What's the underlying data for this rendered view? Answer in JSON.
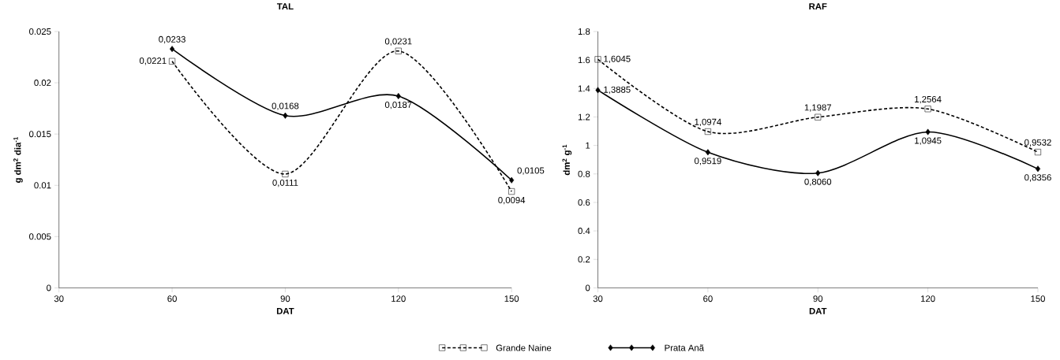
{
  "chart_data": [
    {
      "type": "line",
      "title": "TAL",
      "xlabel": "DAT",
      "ylabel": "g dm$^{2}$ dia$^{-1}$",
      "x": [
        60,
        90,
        120,
        150
      ],
      "series": [
        {
          "name": "Grande Naine",
          "color": "#000000",
          "marker": "square",
          "line_style": "dashed",
          "values": [
            0.0221,
            0.0111,
            0.0231,
            0.0094
          ],
          "value_labels": [
            "0,0221",
            "0,0111",
            "0,0231",
            "0,0094"
          ]
        },
        {
          "name": "Prata Anã",
          "color": "#000000",
          "marker": "diamond",
          "line_style": "solid",
          "values": [
            0.0233,
            0.0168,
            0.0187,
            0.0105
          ],
          "value_labels": [
            "0,0233",
            "0,0168",
            "0,0187",
            "0,0105"
          ]
        }
      ],
      "xlim": [
        30,
        150
      ],
      "xticks": [
        30,
        60,
        90,
        120,
        150
      ],
      "ylim": [
        0,
        0.025
      ],
      "yticks": [
        0,
        0.005,
        0.01,
        0.015,
        0.02,
        0.025
      ],
      "grid": false,
      "legend": "bottom"
    },
    {
      "type": "line",
      "title": "RAF",
      "xlabel": "DAT",
      "ylabel": "dm$^{2}$ g$^{-1}$",
      "x": [
        30,
        60,
        90,
        120,
        150
      ],
      "series": [
        {
          "color": "#000000",
          "marker": "square",
          "line_style": "dashed",
          "values": [
            1.6045,
            1.0974,
            1.1987,
            1.2564,
            0.9532
          ],
          "value_labels": [
            "1,6045",
            "1,0974",
            "1,1987",
            "1,2564",
            "0,9532"
          ]
        },
        {
          "color": "#000000",
          "marker": "diamond",
          "line_style": "solid",
          "values": [
            1.3885,
            0.9519,
            0.806,
            1.0945,
            0.8356
          ],
          "value_labels": [
            "1,3885",
            "0,9519",
            "0,8060",
            "1,0945",
            "0,8356"
          ]
        }
      ],
      "xlim": [
        30,
        150
      ],
      "xticks": [
        30,
        60,
        90,
        120,
        150
      ],
      "ylim": [
        0,
        1.8
      ],
      "yticks": [
        0,
        0.2,
        0.4,
        0.6,
        0.8,
        1,
        1.2,
        1.4,
        1.6,
        1.8
      ],
      "grid": false
    }
  ]
}
